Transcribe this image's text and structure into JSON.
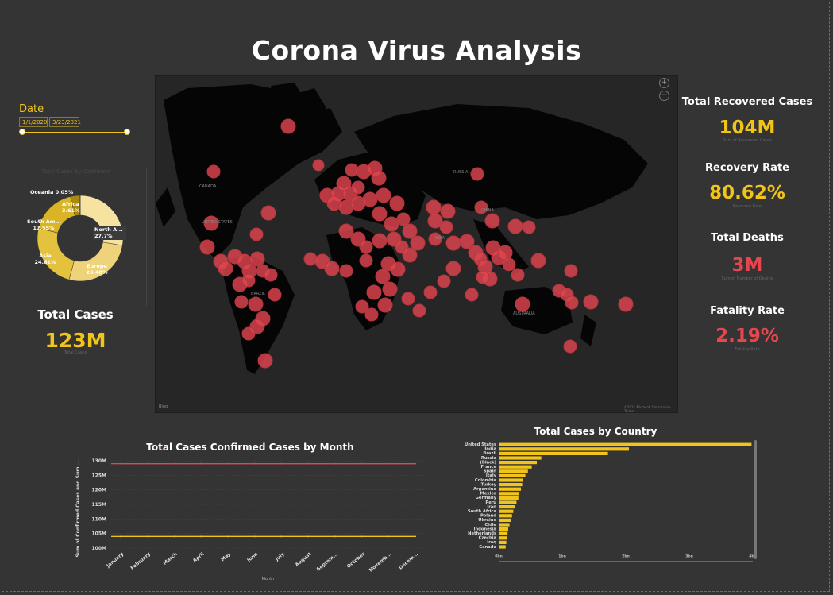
{
  "title": "Corona Virus Analysis",
  "slicer": {
    "label": "Date",
    "start": "1/1/2020",
    "end": "3/23/2021"
  },
  "donut": {
    "title": "Total Cases by Continent",
    "segments": [
      {
        "label": "North A...",
        "pct": "27.7%",
        "value": 27.7,
        "color": "#f6e3a0"
      },
      {
        "label": "Europe",
        "pct": "26.48%",
        "value": 26.48,
        "color": "#efd37a"
      },
      {
        "label": "Asia",
        "pct": "24.61%",
        "value": 24.61,
        "color": "#e5c23e"
      },
      {
        "label": "South Am...",
        "pct": "17.55%",
        "value": 17.55,
        "color": "#d9b526"
      },
      {
        "label": "Africa",
        "pct": "3.61%",
        "value": 3.61,
        "color": "#a98a0e"
      },
      {
        "label": "Oceania",
        "pct": "0.05%",
        "value": 0.05,
        "color": "#7a6508"
      }
    ],
    "label_texts": {
      "north": "North A...\n27.7%",
      "europe": "Europe\n26.48%",
      "asia": "Asia\n24.61%",
      "south": "South Am...\n17.55%",
      "africa": "Africa\n3.61%",
      "oceania": "Oceania 0.05%"
    }
  },
  "kpis": {
    "total_cases": {
      "title": "Total Cases",
      "value": "123M",
      "sub": "Total Cases"
    },
    "recovered": {
      "title": "Total Recovered Cases",
      "value": "104M",
      "sub": "Sum of Recovered Cases"
    },
    "recovery_rate": {
      "title": "Recovery Rate",
      "value": "80.62%",
      "sub": "Recovery Rate"
    },
    "deaths": {
      "title": "Total Deaths",
      "value": "3M",
      "sub": "Sum of Number of Deaths"
    },
    "fatality": {
      "title": "Fatality Rate",
      "value": "2.19%",
      "sub": "Fatality Rate"
    }
  },
  "colors": {
    "accent": "#f0c419",
    "danger": "#e8464f",
    "bubble": "#e0454f"
  },
  "map": {
    "labels": [
      "CANADA",
      "UNITED STATES",
      "RUSSIA",
      "AUSTRALIA",
      "BRAZIL",
      "CHINA",
      "INDIA"
    ],
    "zoom_in": "+",
    "zoom_out": "−",
    "credit_left": "Bing",
    "credit_right": "©2021 Microsoft Corporation Terms"
  },
  "chart_data": [
    {
      "type": "line",
      "title": "Total Cases Confirmed Cases by Month",
      "xlabel": "Month",
      "ylabel": "Sum of Confirmed Cases and Sum ...",
      "categories": [
        "January",
        "February",
        "March",
        "April",
        "May",
        "June",
        "July",
        "August",
        "Septem...",
        "October",
        "Novemb...",
        "Decem..."
      ],
      "y_ticks": [
        "130M",
        "125M",
        "120M",
        "115M",
        "110M",
        "105M",
        "100M"
      ],
      "ylim": [
        100,
        130
      ],
      "series": [
        {
          "values": [
            129,
            129,
            129,
            129,
            129,
            129,
            129,
            129,
            129,
            129,
            129,
            129
          ],
          "color": "#e8464f"
        },
        {
          "values": [
            104,
            104,
            104,
            104,
            104,
            104,
            104,
            104,
            104,
            104,
            104,
            104
          ],
          "color": "#f0c419"
        }
      ]
    },
    {
      "type": "bar",
      "orientation": "horizontal",
      "title": "Total Cases by Country",
      "categories": [
        "United States",
        "India",
        "Brazil",
        "Russia",
        "(Black)",
        "France",
        "Spain",
        "Italy",
        "Colombia",
        "Turkey",
        "Argentina",
        "Mexico",
        "Germany",
        "Peru",
        "Iran",
        "South Africa",
        "Poland",
        "Ukraine",
        "Chile",
        "Indonesia",
        "Netherlands",
        "Czechia",
        "Iraq",
        "Canada"
      ],
      "values": [
        3.98,
        2.05,
        1.72,
        0.67,
        0.6,
        0.52,
        0.46,
        0.42,
        0.38,
        0.37,
        0.35,
        0.32,
        0.31,
        0.28,
        0.26,
        0.23,
        0.21,
        0.19,
        0.17,
        0.15,
        0.14,
        0.13,
        0.12,
        0.11
      ],
      "x_ticks": [
        "0bn",
        "1bn",
        "2bn",
        "3bn",
        "4bn"
      ],
      "xlim": [
        0,
        4
      ],
      "color": "#f0c419"
    }
  ]
}
